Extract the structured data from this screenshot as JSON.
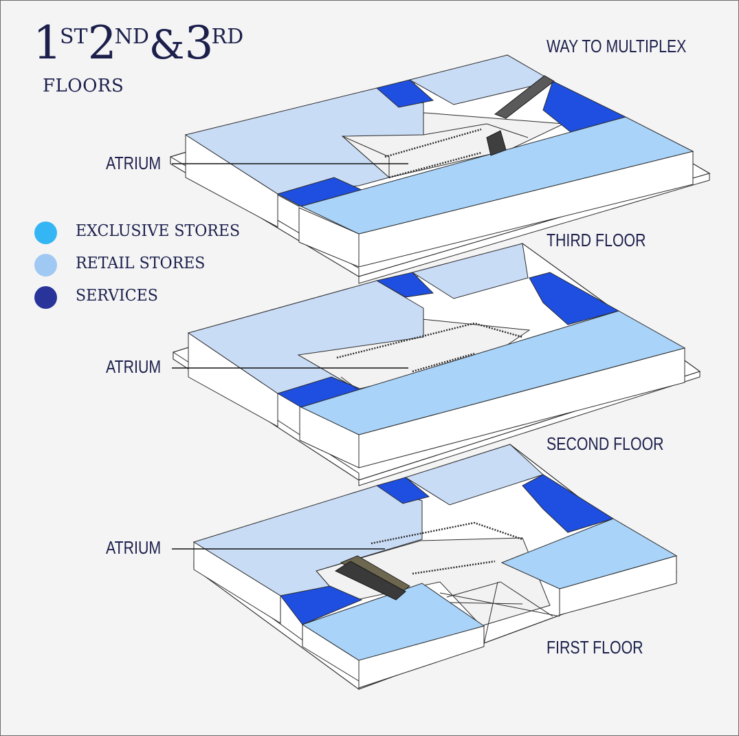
{
  "title": {
    "n1": "1",
    "s1": "ST",
    "n2": "2",
    "s2": "ND",
    "amp": "&",
    "n3": "3",
    "s3": "RD"
  },
  "subtitle": "FLOORS",
  "legend": [
    {
      "label": "EXCLUSIVE STORES",
      "color": "#35b6f4"
    },
    {
      "label": "RETAIL STORES",
      "color": "#9fc9f3"
    },
    {
      "label": "SERVICES",
      "color": "#28349a"
    }
  ],
  "labels": {
    "way_to_multiplex": "WAY TO MULTIPLEX",
    "third_floor": "THIRD FLOOR",
    "second_floor": "SECOND FLOOR",
    "first_floor": "FIRST FLOOR",
    "atrium": "ATRIUM"
  },
  "colors": {
    "store_light": "#c9dcf6",
    "store_mid": "#a9d3f8",
    "services": "#1f4fe0",
    "outline": "#2a2a2a",
    "leader": "#111111"
  }
}
